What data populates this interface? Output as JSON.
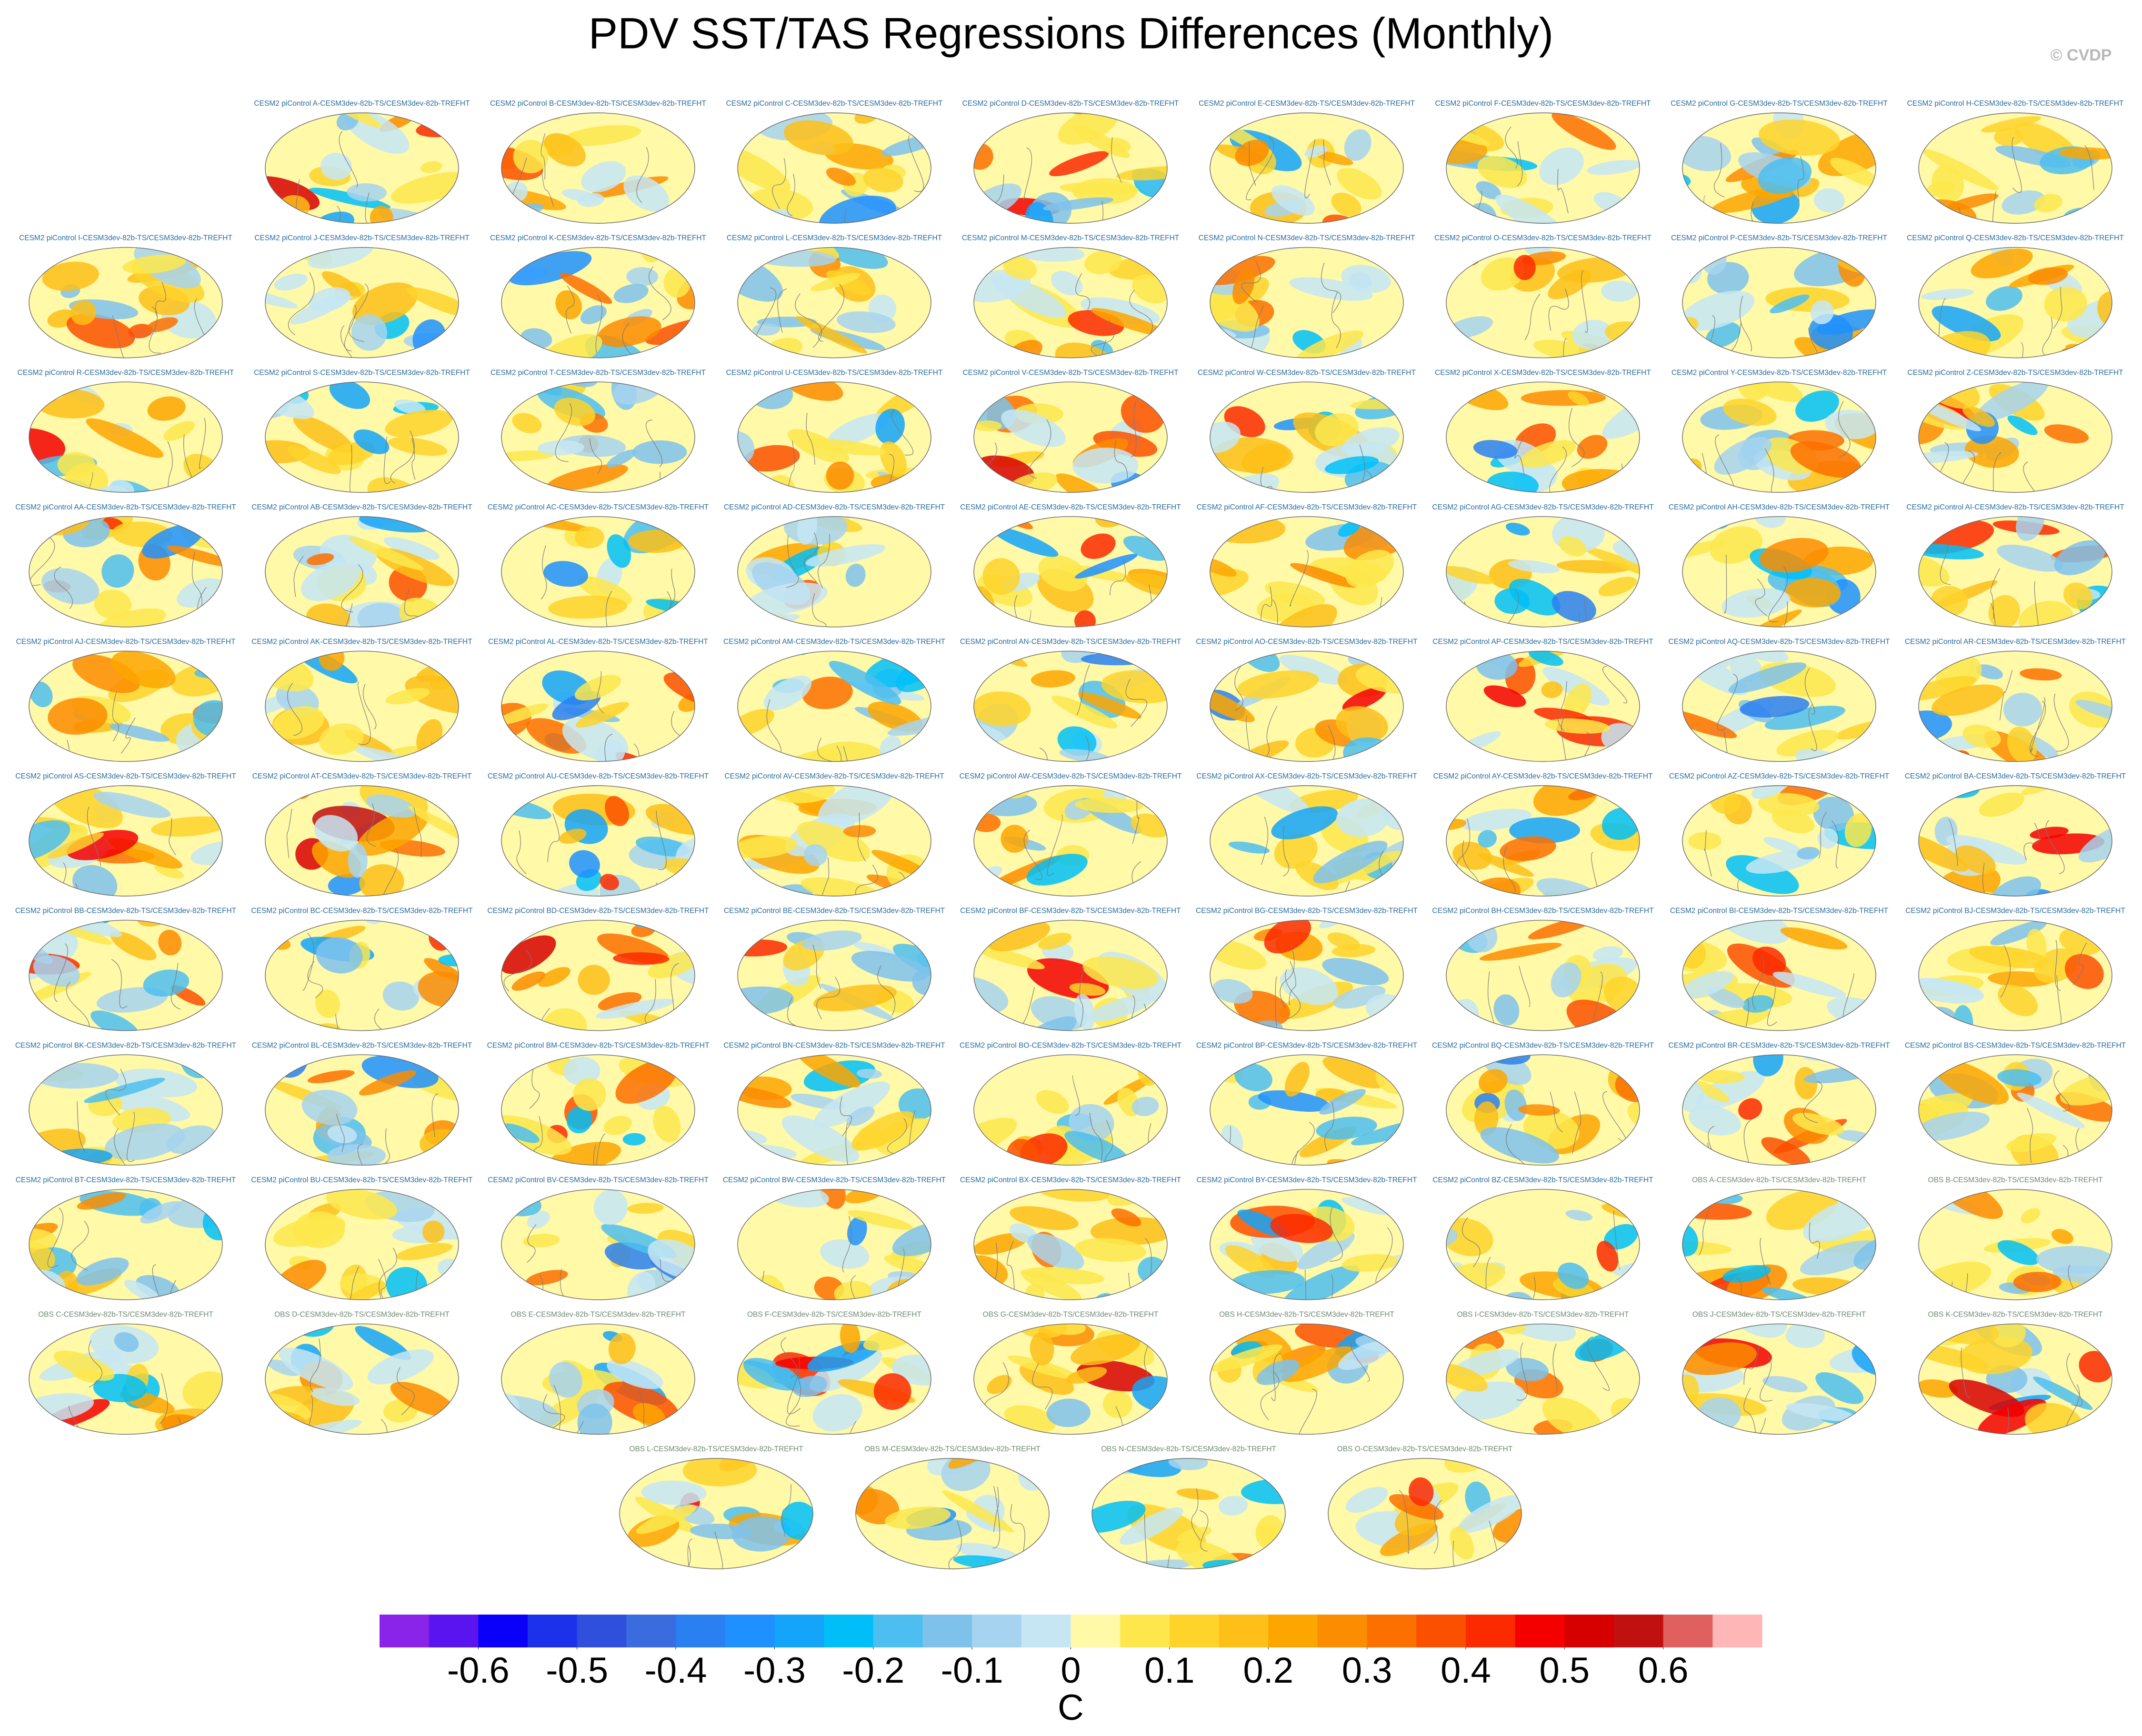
{
  "chart_data": {
    "type": "map-grid",
    "title": "PDV SST/TAS Regressions Differences (Monthly)",
    "watermark": "© CVDP",
    "panels": [
      {
        "title": "CESM2 piControl A-CESM3dev-82b-TS/CESM3dev-82b-TREFHT",
        "color": "#2a6c9c"
      },
      {
        "title": "CESM2 piControl B-CESM3dev-82b-TS/CESM3dev-82b-TREFHT",
        "color": "#2a6c9c"
      },
      {
        "title": "CESM2 piControl C-CESM3dev-82b-TS/CESM3dev-82b-TREFHT",
        "color": "#2a6c9c"
      },
      {
        "title": "CESM2 piControl D-CESM3dev-82b-TS/CESM3dev-82b-TREFHT",
        "color": "#2a6c9c"
      },
      {
        "title": "CESM2 piControl E-CESM3dev-82b-TS/CESM3dev-82b-TREFHT",
        "color": "#2a6c9c"
      },
      {
        "title": "CESM2 piControl F-CESM3dev-82b-TS/CESM3dev-82b-TREFHT",
        "color": "#2a6c9c"
      },
      {
        "title": "CESM2 piControl G-CESM3dev-82b-TS/CESM3dev-82b-TREFHT",
        "color": "#2a6c9c"
      },
      {
        "title": "CESM2 piControl H-CESM3dev-82b-TS/CESM3dev-82b-TREFHT",
        "color": "#2a6c9c"
      },
      {
        "title": "CESM2 piControl I-CESM3dev-82b-TS/CESM3dev-82b-TREFHT",
        "color": "#2a6c9c"
      },
      {
        "title": "CESM2 piControl J-CESM3dev-82b-TS/CESM3dev-82b-TREFHT",
        "color": "#2a6c9c"
      },
      {
        "title": "CESM2 piControl K-CESM3dev-82b-TS/CESM3dev-82b-TREFHT",
        "color": "#2a6c9c"
      },
      {
        "title": "CESM2 piControl L-CESM3dev-82b-TS/CESM3dev-82b-TREFHT",
        "color": "#2a6c9c"
      },
      {
        "title": "CESM2 piControl M-CESM3dev-82b-TS/CESM3dev-82b-TREFHT",
        "color": "#2a6c9c"
      },
      {
        "title": "CESM2 piControl N-CESM3dev-82b-TS/CESM3dev-82b-TREFHT",
        "color": "#2a6c9c"
      },
      {
        "title": "CESM2 piControl O-CESM3dev-82b-TS/CESM3dev-82b-TREFHT",
        "color": "#2a6c9c"
      },
      {
        "title": "CESM2 piControl P-CESM3dev-82b-TS/CESM3dev-82b-TREFHT",
        "color": "#2a6c9c"
      },
      {
        "title": "CESM2 piControl Q-CESM3dev-82b-TS/CESM3dev-82b-TREFHT",
        "color": "#2a6c9c"
      },
      {
        "title": "CESM2 piControl R-CESM3dev-82b-TS/CESM3dev-82b-TREFHT",
        "color": "#2a6c9c"
      },
      {
        "title": "CESM2 piControl S-CESM3dev-82b-TS/CESM3dev-82b-TREFHT",
        "color": "#2a6c9c"
      },
      {
        "title": "CESM2 piControl T-CESM3dev-82b-TS/CESM3dev-82b-TREFHT",
        "color": "#2a6c9c"
      },
      {
        "title": "CESM2 piControl U-CESM3dev-82b-TS/CESM3dev-82b-TREFHT",
        "color": "#2a6c9c"
      },
      {
        "title": "CESM2 piControl V-CESM3dev-82b-TS/CESM3dev-82b-TREFHT",
        "color": "#2a6c9c"
      },
      {
        "title": "CESM2 piControl W-CESM3dev-82b-TS/CESM3dev-82b-TREFHT",
        "color": "#2a6c9c"
      },
      {
        "title": "CESM2 piControl X-CESM3dev-82b-TS/CESM3dev-82b-TREFHT",
        "color": "#2a6c9c"
      },
      {
        "title": "CESM2 piControl Y-CESM3dev-82b-TS/CESM3dev-82b-TREFHT",
        "color": "#2a6c9c"
      },
      {
        "title": "CESM2 piControl Z-CESM3dev-82b-TS/CESM3dev-82b-TREFHT",
        "color": "#2a6c9c"
      },
      {
        "title": "CESM2 piControl AA-CESM3dev-82b-TS/CESM3dev-82b-TREFHT",
        "color": "#2a6c9c"
      },
      {
        "title": "CESM2 piControl AB-CESM3dev-82b-TS/CESM3dev-82b-TREFHT",
        "color": "#2a6c9c"
      },
      {
        "title": "CESM2 piControl AC-CESM3dev-82b-TS/CESM3dev-82b-TREFHT",
        "color": "#2a6c9c"
      },
      {
        "title": "CESM2 piControl AD-CESM3dev-82b-TS/CESM3dev-82b-TREFHT",
        "color": "#2a6c9c"
      },
      {
        "title": "CESM2 piControl AE-CESM3dev-82b-TS/CESM3dev-82b-TREFHT",
        "color": "#2a6c9c"
      },
      {
        "title": "CESM2 piControl AF-CESM3dev-82b-TS/CESM3dev-82b-TREFHT",
        "color": "#2a6c9c"
      },
      {
        "title": "CESM2 piControl AG-CESM3dev-82b-TS/CESM3dev-82b-TREFHT",
        "color": "#2a6c9c"
      },
      {
        "title": "CESM2 piControl AH-CESM3dev-82b-TS/CESM3dev-82b-TREFHT",
        "color": "#2a6c9c"
      },
      {
        "title": "CESM2 piControl AI-CESM3dev-82b-TS/CESM3dev-82b-TREFHT",
        "color": "#2a6c9c"
      },
      {
        "title": "CESM2 piControl AJ-CESM3dev-82b-TS/CESM3dev-82b-TREFHT",
        "color": "#2a6c9c"
      },
      {
        "title": "CESM2 piControl AK-CESM3dev-82b-TS/CESM3dev-82b-TREFHT",
        "color": "#2a6c9c"
      },
      {
        "title": "CESM2 piControl AL-CESM3dev-82b-TS/CESM3dev-82b-TREFHT",
        "color": "#2a6c9c"
      },
      {
        "title": "CESM2 piControl AM-CESM3dev-82b-TS/CESM3dev-82b-TREFHT",
        "color": "#2a6c9c"
      },
      {
        "title": "CESM2 piControl AN-CESM3dev-82b-TS/CESM3dev-82b-TREFHT",
        "color": "#2a6c9c"
      },
      {
        "title": "CESM2 piControl AO-CESM3dev-82b-TS/CESM3dev-82b-TREFHT",
        "color": "#2a6c9c"
      },
      {
        "title": "CESM2 piControl AP-CESM3dev-82b-TS/CESM3dev-82b-TREFHT",
        "color": "#2a6c9c"
      },
      {
        "title": "CESM2 piControl AQ-CESM3dev-82b-TS/CESM3dev-82b-TREFHT",
        "color": "#2a6c9c"
      },
      {
        "title": "CESM2 piControl AR-CESM3dev-82b-TS/CESM3dev-82b-TREFHT",
        "color": "#2a6c9c"
      },
      {
        "title": "CESM2 piControl AS-CESM3dev-82b-TS/CESM3dev-82b-TREFHT",
        "color": "#2a6c9c"
      },
      {
        "title": "CESM2 piControl AT-CESM3dev-82b-TS/CESM3dev-82b-TREFHT",
        "color": "#2a6c9c"
      },
      {
        "title": "CESM2 piControl AU-CESM3dev-82b-TS/CESM3dev-82b-TREFHT",
        "color": "#2a6c9c"
      },
      {
        "title": "CESM2 piControl AV-CESM3dev-82b-TS/CESM3dev-82b-TREFHT",
        "color": "#2a6c9c"
      },
      {
        "title": "CESM2 piControl AW-CESM3dev-82b-TS/CESM3dev-82b-TREFHT",
        "color": "#2a6c9c"
      },
      {
        "title": "CESM2 piControl AX-CESM3dev-82b-TS/CESM3dev-82b-TREFHT",
        "color": "#2a6c9c"
      },
      {
        "title": "CESM2 piControl AY-CESM3dev-82b-TS/CESM3dev-82b-TREFHT",
        "color": "#2a6c9c"
      },
      {
        "title": "CESM2 piControl AZ-CESM3dev-82b-TS/CESM3dev-82b-TREFHT",
        "color": "#2a6c9c"
      },
      {
        "title": "CESM2 piControl BA-CESM3dev-82b-TS/CESM3dev-82b-TREFHT",
        "color": "#2a6c9c"
      },
      {
        "title": "CESM2 piControl BB-CESM3dev-82b-TS/CESM3dev-82b-TREFHT",
        "color": "#2a6c9c"
      },
      {
        "title": "CESM2 piControl BC-CESM3dev-82b-TS/CESM3dev-82b-TREFHT",
        "color": "#2a6c9c"
      },
      {
        "title": "CESM2 piControl BD-CESM3dev-82b-TS/CESM3dev-82b-TREFHT",
        "color": "#2a6c9c"
      },
      {
        "title": "CESM2 piControl BE-CESM3dev-82b-TS/CESM3dev-82b-TREFHT",
        "color": "#2a6c9c"
      },
      {
        "title": "CESM2 piControl BF-CESM3dev-82b-TS/CESM3dev-82b-TREFHT",
        "color": "#2a6c9c"
      },
      {
        "title": "CESM2 piControl BG-CESM3dev-82b-TS/CESM3dev-82b-TREFHT",
        "color": "#2a6c9c"
      },
      {
        "title": "CESM2 piControl BH-CESM3dev-82b-TS/CESM3dev-82b-TREFHT",
        "color": "#2a6c9c"
      },
      {
        "title": "CESM2 piControl BI-CESM3dev-82b-TS/CESM3dev-82b-TREFHT",
        "color": "#2a6c9c"
      },
      {
        "title": "CESM2 piControl BJ-CESM3dev-82b-TS/CESM3dev-82b-TREFHT",
        "color": "#2a6c9c"
      },
      {
        "title": "CESM2 piControl BK-CESM3dev-82b-TS/CESM3dev-82b-TREFHT",
        "color": "#2a6c9c"
      },
      {
        "title": "CESM2 piControl BL-CESM3dev-82b-TS/CESM3dev-82b-TREFHT",
        "color": "#2a6c9c"
      },
      {
        "title": "CESM2 piControl BM-CESM3dev-82b-TS/CESM3dev-82b-TREFHT",
        "color": "#2a6c9c"
      },
      {
        "title": "CESM2 piControl BN-CESM3dev-82b-TS/CESM3dev-82b-TREFHT",
        "color": "#2a6c9c"
      },
      {
        "title": "CESM2 piControl BO-CESM3dev-82b-TS/CESM3dev-82b-TREFHT",
        "color": "#2a6c9c"
      },
      {
        "title": "CESM2 piControl BP-CESM3dev-82b-TS/CESM3dev-82b-TREFHT",
        "color": "#2a6c9c"
      },
      {
        "title": "CESM2 piControl BQ-CESM3dev-82b-TS/CESM3dev-82b-TREFHT",
        "color": "#2a6c9c"
      },
      {
        "title": "CESM2 piControl BR-CESM3dev-82b-TS/CESM3dev-82b-TREFHT",
        "color": "#2a6c9c"
      },
      {
        "title": "CESM2 piControl BS-CESM3dev-82b-TS/CESM3dev-82b-TREFHT",
        "color": "#2a6c9c"
      },
      {
        "title": "CESM2 piControl BT-CESM3dev-82b-TS/CESM3dev-82b-TREFHT",
        "color": "#2a6c9c"
      },
      {
        "title": "CESM2 piControl BU-CESM3dev-82b-TS/CESM3dev-82b-TREFHT",
        "color": "#2a6c9c"
      },
      {
        "title": "CESM2 piControl BV-CESM3dev-82b-TS/CESM3dev-82b-TREFHT",
        "color": "#2a6c9c"
      },
      {
        "title": "CESM2 piControl BW-CESM3dev-82b-TS/CESM3dev-82b-TREFHT",
        "color": "#2a6c9c"
      },
      {
        "title": "CESM2 piControl BX-CESM3dev-82b-TS/CESM3dev-82b-TREFHT",
        "color": "#2a6c9c"
      },
      {
        "title": "CESM2 piControl BY-CESM3dev-82b-TS/CESM3dev-82b-TREFHT",
        "color": "#2a6c9c"
      },
      {
        "title": "CESM2 piControl BZ-CESM3dev-82b-TS/CESM3dev-82b-TREFHT",
        "color": "#2a6c9c"
      },
      {
        "title": "OBS A-CESM3dev-82b-TS/CESM3dev-82b-TREFHT",
        "color": "#6f8a72"
      },
      {
        "title": "OBS B-CESM3dev-82b-TS/CESM3dev-82b-TREFHT",
        "color": "#6f8a72"
      },
      {
        "title": "OBS C-CESM3dev-82b-TS/CESM3dev-82b-TREFHT",
        "color": "#6f8a72"
      },
      {
        "title": "OBS D-CESM3dev-82b-TS/CESM3dev-82b-TREFHT",
        "color": "#6f8a72"
      },
      {
        "title": "OBS E-CESM3dev-82b-TS/CESM3dev-82b-TREFHT",
        "color": "#6f8a72"
      },
      {
        "title": "OBS F-CESM3dev-82b-TS/CESM3dev-82b-TREFHT",
        "color": "#6f8a72"
      },
      {
        "title": "OBS G-CESM3dev-82b-TS/CESM3dev-82b-TREFHT",
        "color": "#6f8a72"
      },
      {
        "title": "OBS H-CESM3dev-82b-TS/CESM3dev-82b-TREFHT",
        "color": "#6f8a72"
      },
      {
        "title": "OBS I-CESM3dev-82b-TS/CESM3dev-82b-TREFHT",
        "color": "#6f8a72"
      },
      {
        "title": "OBS J-CESM3dev-82b-TS/CESM3dev-82b-TREFHT",
        "color": "#6f8a72"
      },
      {
        "title": "OBS K-CESM3dev-82b-TS/CESM3dev-82b-TREFHT",
        "color": "#6f8a72"
      },
      {
        "title": "OBS L-CESM3dev-82b-TS/CESM3dev-82b-TREFHT",
        "color": "#6f8a72"
      },
      {
        "title": "OBS M-CESM3dev-82b-TS/CESM3dev-82b-TREFHT",
        "color": "#6f8a72"
      },
      {
        "title": "OBS N-CESM3dev-82b-TS/CESM3dev-82b-TREFHT",
        "color": "#6f8a72"
      },
      {
        "title": "OBS O-CESM3dev-82b-TS/CESM3dev-82b-TREFHT",
        "color": "#6f8a72"
      }
    ],
    "colorbar": {
      "label": "C",
      "lim": [
        -0.7,
        0.7
      ],
      "ticks": [
        -0.6,
        -0.5,
        -0.4,
        -0.3,
        -0.2,
        -0.1,
        0,
        0.1,
        0.2,
        0.3,
        0.4,
        0.5,
        0.6
      ],
      "colors": [
        "#8a24e8",
        "#5a14f0",
        "#0a00fa",
        "#1c32ea",
        "#2e50dc",
        "#3a6ce0",
        "#2a80f0",
        "#1e90ff",
        "#14a4fa",
        "#00bff8",
        "#4cbef0",
        "#7ec2ec",
        "#a6d4f0",
        "#c6e6f4",
        "#fff9a8",
        "#fde74c",
        "#fed42a",
        "#fdbf18",
        "#fda600",
        "#fc8c00",
        "#fc7000",
        "#fb5000",
        "#fb2a00",
        "#f50000",
        "#d70000",
        "#c01010",
        "#e06060",
        "#ffb6b6"
      ]
    }
  }
}
